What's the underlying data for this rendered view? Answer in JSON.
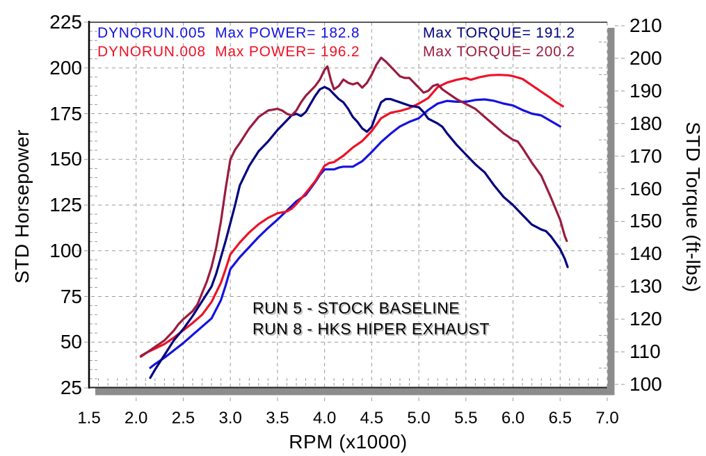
{
  "legend": {
    "run5_power_label": "DYNORUN.005  Max POWER= 182.8",
    "run8_power_label": "DYNORUN.008  Max POWER= 196.2",
    "run5_torque_label": "Max TORQUE= 191.2",
    "run8_torque_label": "Max TORQUE= 200.2"
  },
  "annotation": {
    "line1": "RUN 5 - STOCK BASELINE",
    "line2": "RUN 8 - HKS HIPER EXHAUST"
  },
  "colors": {
    "power_run5": "#1412e0",
    "power_run8": "#ee1126",
    "torque_run5": "#00007f",
    "torque_run8": "#9a1b3f",
    "grid": "#999999",
    "shadow": "#8c8c8c",
    "axis_line": "#222222",
    "text": "#000000"
  },
  "chart_data": {
    "type": "line",
    "title": "",
    "xlabel": "RPM (x1000)",
    "left_axis": {
      "label": "STD Horsepower",
      "min": 25,
      "max": 225,
      "ticks": [
        225,
        200,
        175,
        150,
        125,
        100,
        75,
        50,
        25
      ]
    },
    "right_axis": {
      "label": "STD Torque (ft-lbs)",
      "min": 100,
      "max": 210,
      "ticks": [
        210,
        200,
        190,
        180,
        170,
        160,
        150,
        140,
        130,
        120,
        110,
        100
      ]
    },
    "x_axis": {
      "label": "RPM (x1000)",
      "min": 1.5,
      "max": 7.0,
      "ticks": [
        "1.5",
        "2.0",
        "2.5",
        "3.0",
        "3.5",
        "4.0",
        "4.5",
        "5.0",
        "5.5",
        "6.0",
        "6.5",
        "7.0"
      ]
    },
    "grid": {
      "h_lines_hp": [
        50,
        75,
        100,
        125,
        150,
        175,
        200
      ],
      "v_lines_rpm": [
        2.0,
        2.5,
        3.0,
        3.5,
        4.0,
        4.5,
        5.0,
        5.5,
        6.0,
        6.5,
        7.0
      ],
      "style": "dashed"
    },
    "legend_position": "top",
    "series": [
      {
        "name": "DYNORUN.005 Power",
        "axis": "left",
        "units": "hp",
        "max": 182.8,
        "color_key": "power_run5",
        "points": [
          [
            2.15,
            36
          ],
          [
            2.2,
            38
          ],
          [
            2.3,
            41.5
          ],
          [
            2.4,
            45.5
          ],
          [
            2.5,
            49.5
          ],
          [
            2.6,
            54
          ],
          [
            2.7,
            58.5
          ],
          [
            2.8,
            63
          ],
          [
            2.9,
            73
          ],
          [
            2.95,
            81
          ],
          [
            3.0,
            90
          ],
          [
            3.1,
            96.5
          ],
          [
            3.2,
            102
          ],
          [
            3.3,
            107.5
          ],
          [
            3.4,
            112.5
          ],
          [
            3.5,
            117
          ],
          [
            3.6,
            122
          ],
          [
            3.7,
            127
          ],
          [
            3.8,
            130.5
          ],
          [
            3.9,
            137.5
          ],
          [
            3.95,
            141.5
          ],
          [
            4.0,
            144.5
          ],
          [
            4.1,
            144.5
          ],
          [
            4.15,
            145.5
          ],
          [
            4.2,
            146
          ],
          [
            4.3,
            146
          ],
          [
            4.4,
            149
          ],
          [
            4.5,
            154
          ],
          [
            4.6,
            159.5
          ],
          [
            4.7,
            164
          ],
          [
            4.8,
            168
          ],
          [
            4.9,
            170.5
          ],
          [
            5.0,
            172.5
          ],
          [
            5.1,
            177
          ],
          [
            5.2,
            180.5
          ],
          [
            5.3,
            182
          ],
          [
            5.4,
            181.5
          ],
          [
            5.5,
            181.5
          ],
          [
            5.6,
            182.5
          ],
          [
            5.7,
            182.8
          ],
          [
            5.8,
            182
          ],
          [
            5.9,
            180.5
          ],
          [
            6.0,
            179.5
          ],
          [
            6.1,
            177
          ],
          [
            6.2,
            175
          ],
          [
            6.3,
            174
          ],
          [
            6.4,
            171
          ],
          [
            6.5,
            168
          ]
        ]
      },
      {
        "name": "DYNORUN.008 Power",
        "axis": "left",
        "units": "hp",
        "max": 196.2,
        "color_key": "power_run8",
        "points": [
          [
            2.05,
            42.5
          ],
          [
            2.1,
            44
          ],
          [
            2.2,
            46.5
          ],
          [
            2.3,
            49
          ],
          [
            2.4,
            52.5
          ],
          [
            2.5,
            56.5
          ],
          [
            2.6,
            60.5
          ],
          [
            2.7,
            65
          ],
          [
            2.8,
            72
          ],
          [
            2.9,
            82.5
          ],
          [
            2.95,
            90
          ],
          [
            3.0,
            98
          ],
          [
            3.1,
            104.5
          ],
          [
            3.2,
            110
          ],
          [
            3.3,
            114.5
          ],
          [
            3.4,
            118
          ],
          [
            3.5,
            120.5
          ],
          [
            3.6,
            121.5
          ],
          [
            3.65,
            123
          ],
          [
            3.7,
            125.5
          ],
          [
            3.8,
            131.5
          ],
          [
            3.9,
            138
          ],
          [
            4.0,
            146.5
          ],
          [
            4.05,
            148
          ],
          [
            4.1,
            148.5
          ],
          [
            4.2,
            152
          ],
          [
            4.3,
            156.5
          ],
          [
            4.4,
            160
          ],
          [
            4.5,
            165.5
          ],
          [
            4.6,
            172.5
          ],
          [
            4.7,
            175.5
          ],
          [
            4.8,
            176.5
          ],
          [
            4.9,
            178
          ],
          [
            5.0,
            180.5
          ],
          [
            5.1,
            183.5
          ],
          [
            5.2,
            189.5
          ],
          [
            5.3,
            192
          ],
          [
            5.4,
            193.5
          ],
          [
            5.5,
            194.5
          ],
          [
            5.55,
            193.5
          ],
          [
            5.65,
            195
          ],
          [
            5.75,
            196
          ],
          [
            5.85,
            196.2
          ],
          [
            5.95,
            196
          ],
          [
            6.0,
            195.5
          ],
          [
            6.1,
            194
          ],
          [
            6.2,
            190.5
          ],
          [
            6.3,
            187
          ],
          [
            6.4,
            183.5
          ],
          [
            6.45,
            181.5
          ],
          [
            6.5,
            180
          ],
          [
            6.53,
            179
          ]
        ]
      },
      {
        "name": "DYNORUN.005 Torque",
        "axis": "right",
        "units": "ft-lbs",
        "max": 191.2,
        "color_key": "torque_run5",
        "points": [
          [
            2.15,
            102
          ],
          [
            2.2,
            104.5
          ],
          [
            2.3,
            109
          ],
          [
            2.4,
            113.5
          ],
          [
            2.5,
            117
          ],
          [
            2.6,
            121
          ],
          [
            2.7,
            125.5
          ],
          [
            2.8,
            130
          ],
          [
            2.85,
            134
          ],
          [
            2.9,
            139
          ],
          [
            2.95,
            144
          ],
          [
            3.0,
            149.5
          ],
          [
            3.05,
            155
          ],
          [
            3.1,
            161
          ],
          [
            3.15,
            164
          ],
          [
            3.2,
            167
          ],
          [
            3.3,
            171.5
          ],
          [
            3.4,
            174.5
          ],
          [
            3.5,
            178
          ],
          [
            3.6,
            181
          ],
          [
            3.65,
            182.5
          ],
          [
            3.7,
            183
          ],
          [
            3.75,
            182.3
          ],
          [
            3.8,
            183.5
          ],
          [
            3.85,
            186
          ],
          [
            3.9,
            188.5
          ],
          [
            3.95,
            190.5
          ],
          [
            4.0,
            191.2
          ],
          [
            4.05,
            190.5
          ],
          [
            4.1,
            189
          ],
          [
            4.15,
            187.5
          ],
          [
            4.2,
            186.5
          ],
          [
            4.25,
            184.5
          ],
          [
            4.3,
            182
          ],
          [
            4.35,
            180.5
          ],
          [
            4.4,
            178.5
          ],
          [
            4.45,
            177.5
          ],
          [
            4.5,
            179
          ],
          [
            4.55,
            183
          ],
          [
            4.6,
            186.5
          ],
          [
            4.65,
            187.5
          ],
          [
            4.7,
            187.5
          ],
          [
            4.75,
            187
          ],
          [
            4.8,
            186.5
          ],
          [
            4.9,
            185.5
          ],
          [
            5.0,
            185
          ],
          [
            5.05,
            183.5
          ],
          [
            5.1,
            181.5
          ],
          [
            5.2,
            180
          ],
          [
            5.25,
            179
          ],
          [
            5.3,
            177
          ],
          [
            5.4,
            173.5
          ],
          [
            5.5,
            170.5
          ],
          [
            5.6,
            167.5
          ],
          [
            5.7,
            165
          ],
          [
            5.8,
            161
          ],
          [
            5.9,
            157.5
          ],
          [
            6.0,
            155
          ],
          [
            6.1,
            152
          ],
          [
            6.2,
            149
          ],
          [
            6.3,
            147.5
          ],
          [
            6.35,
            147
          ],
          [
            6.4,
            145.5
          ],
          [
            6.5,
            141.5
          ],
          [
            6.55,
            138.5
          ],
          [
            6.58,
            136
          ]
        ]
      },
      {
        "name": "DYNORUN.008 Torque",
        "axis": "right",
        "units": "ft-lbs",
        "max": 200.2,
        "color_key": "torque_run8",
        "points": [
          [
            2.05,
            108.5
          ],
          [
            2.1,
            109.5
          ],
          [
            2.2,
            111.5
          ],
          [
            2.3,
            113.5
          ],
          [
            2.4,
            116.5
          ],
          [
            2.45,
            118.5
          ],
          [
            2.5,
            120
          ],
          [
            2.6,
            122.5
          ],
          [
            2.65,
            124.5
          ],
          [
            2.7,
            128
          ],
          [
            2.75,
            131.5
          ],
          [
            2.8,
            136
          ],
          [
            2.85,
            142
          ],
          [
            2.9,
            150
          ],
          [
            2.95,
            160
          ],
          [
            3.0,
            169
          ],
          [
            3.05,
            172
          ],
          [
            3.1,
            174
          ],
          [
            3.2,
            178.5
          ],
          [
            3.3,
            182
          ],
          [
            3.4,
            184
          ],
          [
            3.5,
            184.5
          ],
          [
            3.55,
            184
          ],
          [
            3.6,
            183
          ],
          [
            3.65,
            182.5
          ],
          [
            3.7,
            184
          ],
          [
            3.75,
            186.5
          ],
          [
            3.8,
            188.5
          ],
          [
            3.9,
            191.5
          ],
          [
            3.95,
            193.5
          ],
          [
            4.0,
            196.5
          ],
          [
            4.03,
            197.5
          ],
          [
            4.07,
            193
          ],
          [
            4.1,
            190.5
          ],
          [
            4.15,
            191.5
          ],
          [
            4.2,
            193.5
          ],
          [
            4.25,
            192.5
          ],
          [
            4.3,
            192
          ],
          [
            4.35,
            192.5
          ],
          [
            4.4,
            191
          ],
          [
            4.45,
            192.5
          ],
          [
            4.5,
            195
          ],
          [
            4.55,
            198
          ],
          [
            4.6,
            200.2
          ],
          [
            4.65,
            199
          ],
          [
            4.7,
            197.5
          ],
          [
            4.75,
            196
          ],
          [
            4.8,
            194.5
          ],
          [
            4.85,
            194
          ],
          [
            4.9,
            194
          ],
          [
            4.95,
            192.5
          ],
          [
            5.0,
            191
          ],
          [
            5.05,
            189.5
          ],
          [
            5.1,
            190
          ],
          [
            5.15,
            191.5
          ],
          [
            5.2,
            192
          ],
          [
            5.25,
            190.5
          ],
          [
            5.3,
            189.5
          ],
          [
            5.4,
            187.5
          ],
          [
            5.5,
            186
          ],
          [
            5.6,
            184.5
          ],
          [
            5.7,
            182
          ],
          [
            5.8,
            179.5
          ],
          [
            5.9,
            177
          ],
          [
            6.0,
            175
          ],
          [
            6.05,
            174.5
          ],
          [
            6.1,
            172.5
          ],
          [
            6.2,
            168
          ],
          [
            6.3,
            164
          ],
          [
            6.4,
            157.5
          ],
          [
            6.45,
            154
          ],
          [
            6.5,
            150.5
          ],
          [
            6.55,
            145.5
          ],
          [
            6.57,
            144
          ]
        ]
      }
    ]
  }
}
